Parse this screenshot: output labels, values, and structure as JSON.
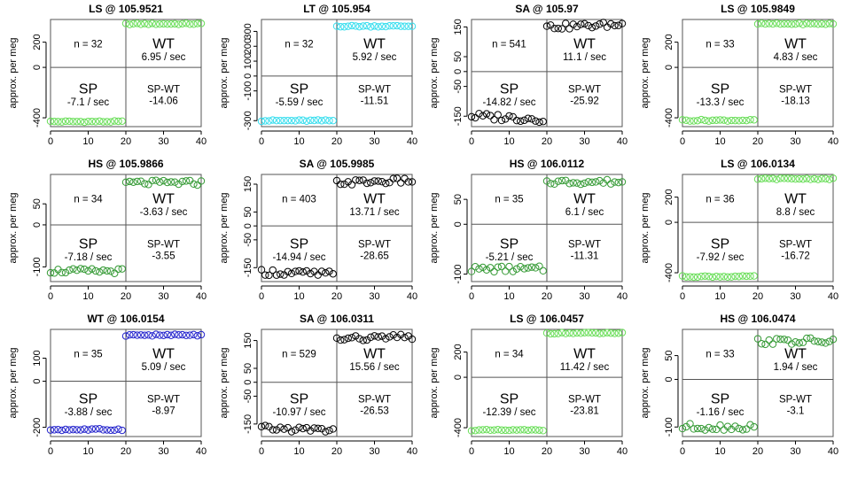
{
  "chart_data": [
    {
      "type": "scatter",
      "title": "LS @ 105.9521",
      "ylabel": "approx. per meg",
      "xlim": [
        0,
        40
      ],
      "ylim": [
        -470,
        380
      ],
      "xticks": [
        0,
        10,
        20,
        30,
        40
      ],
      "yticks": [
        -400,
        0,
        200
      ],
      "ytick_labels": [
        "-400",
        "0",
        "200"
      ],
      "color": "#66dd55",
      "ref_y": 0,
      "split_x": 20,
      "sp_level": -430,
      "wt_level": 345,
      "sp_jitter": 5,
      "wt_jitter": 5,
      "annotations": {
        "n": "n = 32",
        "wt": "WT",
        "wt_rate": "6.95 / sec",
        "sp": "SP",
        "sp_rate": "-7.1 / sec",
        "spwt": "SP-WT",
        "spwt_value": "-14.06"
      }
    },
    {
      "type": "scatter",
      "title": "LT @ 105.954",
      "ylabel": "approx. per meg",
      "xlim": [
        0,
        40
      ],
      "ylim": [
        -340,
        380
      ],
      "xticks": [
        0,
        10,
        20,
        30,
        40
      ],
      "yticks": [
        -300,
        -100,
        0,
        100,
        200,
        300
      ],
      "ytick_labels": [
        "-300",
        "-100",
        "0",
        "100",
        "200",
        "300"
      ],
      "color": "#33ddee",
      "ref_y": 0,
      "split_x": 20,
      "sp_level": -300,
      "wt_level": 335,
      "sp_jitter": 5,
      "wt_jitter": 5,
      "annotations": {
        "n": "n = 32",
        "wt": "WT",
        "wt_rate": "5.92 / sec",
        "sp": "SP",
        "sp_rate": "-5.59 / sec",
        "spwt": "SP-WT",
        "spwt_value": "-11.51"
      }
    },
    {
      "type": "scatter",
      "title": "SA @ 105.97",
      "ylabel": "approx. per meg",
      "xlim": [
        0,
        40
      ],
      "ylim": [
        -185,
        175
      ],
      "xticks": [
        0,
        10,
        20,
        30,
        40
      ],
      "yticks": [
        -150,
        -50,
        0,
        50,
        150
      ],
      "ytick_labels": [
        "-150",
        "-50",
        "0",
        "50",
        "150"
      ],
      "color": "#000000",
      "ref_y": 0,
      "split_x": 20,
      "sp_level": -150,
      "wt_level": 150,
      "sp_jitter": 12,
      "wt_jitter": 10,
      "annotations": {
        "n": "n = 541",
        "wt": "WT",
        "wt_rate": "11.1 / sec",
        "sp": "SP",
        "sp_rate": "-14.82 / sec",
        "spwt": "SP-WT",
        "spwt_value": "-25.92"
      }
    },
    {
      "type": "scatter",
      "title": "LS @ 105.9849",
      "ylabel": "approx. per meg",
      "xlim": [
        0,
        40
      ],
      "ylim": [
        -470,
        380
      ],
      "xticks": [
        0,
        10,
        20,
        30,
        40
      ],
      "yticks": [
        -400,
        0,
        200
      ],
      "ytick_labels": [
        "-400",
        "0",
        "200"
      ],
      "color": "#66dd55",
      "ref_y": 0,
      "split_x": 20,
      "sp_level": -420,
      "wt_level": 345,
      "sp_jitter": 6,
      "wt_jitter": 5,
      "annotations": {
        "n": "n = 33",
        "wt": "WT",
        "wt_rate": "4.83 / sec",
        "sp": "SP",
        "sp_rate": "-13.3 / sec",
        "spwt": "SP-WT",
        "spwt_value": "-18.13"
      }
    },
    {
      "type": "scatter",
      "title": "HS @ 105.9866",
      "ylabel": "approx. per meg",
      "xlim": [
        0,
        40
      ],
      "ylim": [
        -135,
        120
      ],
      "xticks": [
        0,
        10,
        20,
        30,
        40
      ],
      "yticks": [
        -100,
        0,
        50
      ],
      "ytick_labels": [
        "-100",
        "0",
        "50"
      ],
      "color": "#339933",
      "ref_y": 0,
      "split_x": 20,
      "sp_level": -110,
      "wt_level": 100,
      "sp_jitter": 6,
      "wt_jitter": 6,
      "annotations": {
        "n": "n = 34",
        "wt": "WT",
        "wt_rate": "-3.63 / sec",
        "sp": "SP",
        "sp_rate": "-7.18 / sec",
        "spwt": "SP-WT",
        "spwt_value": "-3.55"
      }
    },
    {
      "type": "scatter",
      "title": "SA @ 105.9985",
      "ylabel": "approx. per meg",
      "xlim": [
        0,
        40
      ],
      "ylim": [
        -200,
        185
      ],
      "xticks": [
        0,
        10,
        20,
        30,
        40
      ],
      "yticks": [
        -150,
        -50,
        0,
        50,
        150
      ],
      "ytick_labels": [
        "-150",
        "-50",
        "0",
        "50",
        "150"
      ],
      "color": "#000000",
      "ref_y": 0,
      "split_x": 20,
      "sp_level": -165,
      "wt_level": 155,
      "sp_jitter": 12,
      "wt_jitter": 10,
      "annotations": {
        "n": "n = 403",
        "wt": "WT",
        "wt_rate": "13.71 / sec",
        "sp": "SP",
        "sp_rate": "-14.94 / sec",
        "spwt": "SP-WT",
        "spwt_value": "-28.65"
      }
    },
    {
      "type": "scatter",
      "title": "HS @ 106.0112",
      "ylabel": "approx. per meg",
      "xlim": [
        0,
        40
      ],
      "ylim": [
        -115,
        100
      ],
      "xticks": [
        0,
        10,
        20,
        30,
        40
      ],
      "yticks": [
        -100,
        0,
        50
      ],
      "ytick_labels": [
        "-100",
        "0",
        "50"
      ],
      "color": "#339933",
      "ref_y": 0,
      "split_x": 20,
      "sp_level": -90,
      "wt_level": 85,
      "sp_jitter": 6,
      "wt_jitter": 5,
      "annotations": {
        "n": "n = 35",
        "wt": "WT",
        "wt_rate": "6.1 / sec",
        "sp": "SP",
        "sp_rate": "-5.21 / sec",
        "spwt": "SP-WT",
        "spwt_value": "-11.31"
      }
    },
    {
      "type": "scatter",
      "title": "LS @ 106.0134",
      "ylabel": "approx. per meg",
      "xlim": [
        0,
        40
      ],
      "ylim": [
        -470,
        380
      ],
      "xticks": [
        0,
        10,
        20,
        30,
        40
      ],
      "yticks": [
        -400,
        0,
        200
      ],
      "ytick_labels": [
        "-400",
        "0",
        "200"
      ],
      "color": "#66dd55",
      "ref_y": 0,
      "split_x": 20,
      "sp_level": -430,
      "wt_level": 345,
      "sp_jitter": 5,
      "wt_jitter": 5,
      "annotations": {
        "n": "n = 36",
        "wt": "WT",
        "wt_rate": "8.8 / sec",
        "sp": "SP",
        "sp_rate": "-7.92 / sec",
        "spwt": "SP-WT",
        "spwt_value": "-16.72"
      }
    },
    {
      "type": "scatter",
      "title": "WT @ 106.0154",
      "ylabel": "approx. per meg",
      "xlim": [
        0,
        40
      ],
      "ylim": [
        -240,
        225
      ],
      "xticks": [
        0,
        10,
        20,
        30,
        40
      ],
      "yticks": [
        -200,
        0,
        100
      ],
      "ytick_labels": [
        "-200",
        "0",
        "100"
      ],
      "color": "#2222cc",
      "ref_y": 0,
      "split_x": 20,
      "sp_level": -210,
      "wt_level": 200,
      "sp_jitter": 4,
      "wt_jitter": 4,
      "annotations": {
        "n": "n = 35",
        "wt": "WT",
        "wt_rate": "5.09 / sec",
        "sp": "SP",
        "sp_rate": "-3.88 / sec",
        "spwt": "SP-WT",
        "spwt_value": "-8.97"
      }
    },
    {
      "type": "scatter",
      "title": "SA @ 106.0311",
      "ylabel": "approx. per meg",
      "xlim": [
        0,
        40
      ],
      "ylim": [
        -195,
        190
      ],
      "xticks": [
        0,
        10,
        20,
        30,
        40
      ],
      "yticks": [
        -150,
        -50,
        0,
        50,
        150
      ],
      "ytick_labels": [
        "-150",
        "-50",
        "0",
        "50",
        "150"
      ],
      "color": "#000000",
      "ref_y": 0,
      "split_x": 20,
      "sp_level": -165,
      "wt_level": 155,
      "sp_jitter": 10,
      "wt_jitter": 10,
      "annotations": {
        "n": "n = 529",
        "wt": "WT",
        "wt_rate": "15.56 / sec",
        "sp": "SP",
        "sp_rate": "-10.97 / sec",
        "spwt": "SP-WT",
        "spwt_value": "-26.53"
      }
    },
    {
      "type": "scatter",
      "title": "LS @ 106.0457",
      "ylabel": "approx. per meg",
      "xlim": [
        0,
        40
      ],
      "ylim": [
        -470,
        380
      ],
      "xticks": [
        0,
        10,
        20,
        30,
        40
      ],
      "yticks": [
        -400,
        0,
        200
      ],
      "ytick_labels": [
        "-400",
        "0",
        "200"
      ],
      "color": "#66dd55",
      "ref_y": 0,
      "split_x": 20,
      "sp_level": -420,
      "wt_level": 350,
      "sp_jitter": 5,
      "wt_jitter": 5,
      "annotations": {
        "n": "n = 34",
        "wt": "WT",
        "wt_rate": "11.42 / sec",
        "sp": "SP",
        "sp_rate": "-12.39 / sec",
        "spwt": "SP-WT",
        "spwt_value": "-23.81"
      }
    },
    {
      "type": "scatter",
      "title": "HS @ 106.0474",
      "ylabel": "approx. per meg",
      "xlim": [
        0,
        40
      ],
      "ylim": [
        -120,
        105
      ],
      "xticks": [
        0,
        10,
        20,
        30,
        40
      ],
      "yticks": [
        -100,
        0,
        50
      ],
      "ytick_labels": [
        "-100",
        "0",
        "50"
      ],
      "color": "#339933",
      "ref_y": 0,
      "split_x": 20,
      "sp_level": -100,
      "wt_level": 80,
      "sp_jitter": 7,
      "wt_jitter": 7,
      "annotations": {
        "n": "n = 33",
        "wt": "WT",
        "wt_rate": "1.94 / sec",
        "sp": "SP",
        "sp_rate": "-1.16 / sec",
        "spwt": "SP-WT",
        "spwt_value": "-3.1"
      }
    }
  ]
}
